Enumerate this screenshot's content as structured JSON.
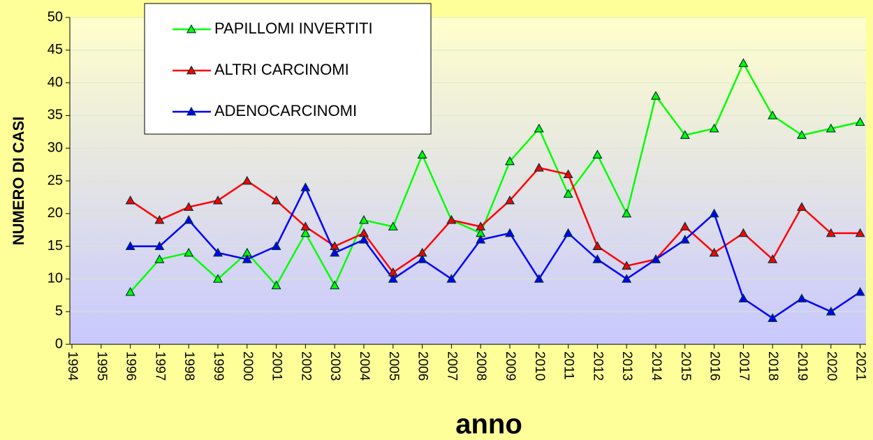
{
  "chart_data": {
    "type": "line",
    "categories": [
      "1994",
      "1995",
      "1996",
      "1997",
      "1998",
      "1999",
      "2000",
      "2001",
      "2002",
      "2003",
      "2004",
      "2005",
      "2006",
      "2007",
      "2008",
      "2009",
      "2010",
      "2011",
      "2012",
      "2013",
      "2014",
      "2015",
      "2016",
      "2017",
      "2018",
      "2019",
      "2020",
      "2021"
    ],
    "series": [
      {
        "name": "PAPILLOMI INVERTITI",
        "color": "#00ff00",
        "values": [
          null,
          null,
          8,
          13,
          14,
          10,
          14,
          9,
          17,
          9,
          19,
          18,
          29,
          19,
          17,
          28,
          33,
          23,
          29,
          20,
          38,
          32,
          33,
          43,
          35,
          32,
          33,
          34
        ]
      },
      {
        "name": "ALTRI CARCINOMI",
        "color": "#ff0000",
        "values": [
          null,
          null,
          22,
          19,
          21,
          22,
          25,
          22,
          18,
          15,
          17,
          11,
          14,
          19,
          18,
          22,
          27,
          26,
          15,
          12,
          13,
          18,
          14,
          17,
          13,
          21,
          17,
          17
        ]
      },
      {
        "name": "ADENOCARCINOMI",
        "color": "#0000ff",
        "values": [
          null,
          null,
          15,
          15,
          19,
          14,
          13,
          15,
          24,
          14,
          16,
          10,
          13,
          10,
          16,
          17,
          10,
          17,
          13,
          10,
          13,
          16,
          20,
          7,
          4,
          7,
          5,
          8
        ]
      }
    ],
    "ylabel": "NUMERO DI CASI",
    "xlabel": "anno",
    "ylim": [
      0,
      50
    ],
    "yticks": [
      0,
      5,
      10,
      15,
      20,
      25,
      30,
      35,
      40,
      45,
      50
    ],
    "grid": true,
    "legend": "upper left"
  }
}
